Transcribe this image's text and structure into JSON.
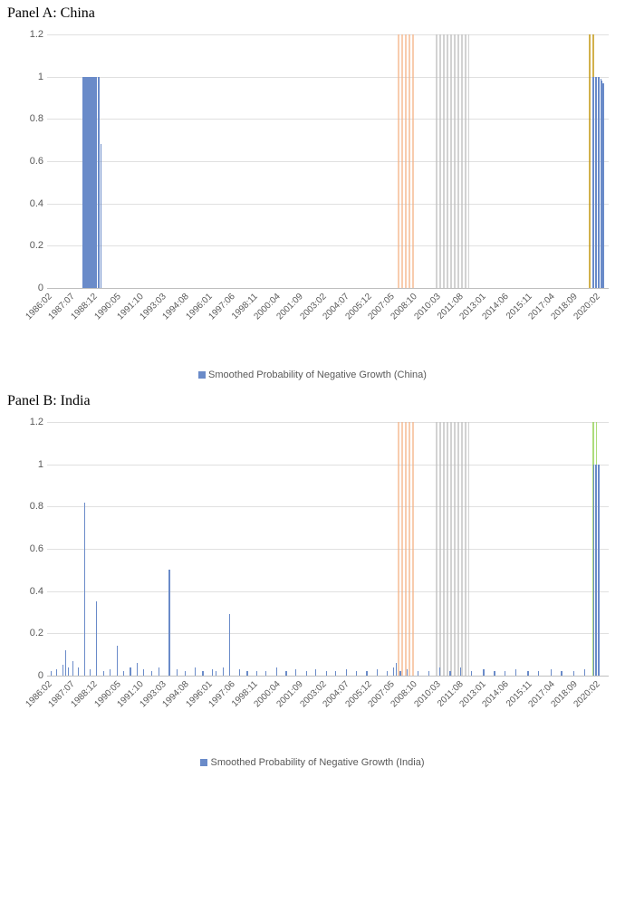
{
  "panelA": {
    "title": "Panel A: China",
    "legend": "Smoothed Probability of Negative Growth (China)",
    "type": "bar",
    "ylim": [
      0,
      1.2
    ],
    "ytick_step": 0.2,
    "x_start": {
      "y": 1986,
      "m": 2
    },
    "x_end": {
      "y": 2020,
      "m": 12
    },
    "xtick_labels": [
      "1986:02",
      "1987:07",
      "1988:12",
      "1990:05",
      "1991:10",
      "1993:03",
      "1994:08",
      "1996:01",
      "1997:06",
      "1998:11",
      "2000:04",
      "2001:09",
      "2003:02",
      "2004:07",
      "2005:12",
      "2007:05",
      "2008:10",
      "2010:03",
      "2011:08",
      "2013:01",
      "2014:06",
      "2015:11",
      "2017:04",
      "2018:09",
      "2020:02"
    ],
    "xtick_step_months": 17,
    "bar_color": "#6a8bc9",
    "bar_data": [
      {
        "ym": "1988:05",
        "v": 1.0
      },
      {
        "ym": "1988:06",
        "v": 1.0
      },
      {
        "ym": "1988:07",
        "v": 1.0
      },
      {
        "ym": "1988:08",
        "v": 1.0
      },
      {
        "ym": "1988:09",
        "v": 1.0
      },
      {
        "ym": "1988:10",
        "v": 1.0
      },
      {
        "ym": "1988:11",
        "v": 1.0
      },
      {
        "ym": "1988:12",
        "v": 1.0
      },
      {
        "ym": "1989:01",
        "v": 1.0
      },
      {
        "ym": "1989:02",
        "v": 1.0
      },
      {
        "ym": "1989:03",
        "v": 1.0
      },
      {
        "ym": "1989:04",
        "v": 1.0
      },
      {
        "ym": "1989:05",
        "v": 1.0
      },
      {
        "ym": "1989:06",
        "v": 0.68
      },
      {
        "ym": "2019:12",
        "v": 1.0
      },
      {
        "ym": "2020:01",
        "v": 1.0
      },
      {
        "ym": "2020:02",
        "v": 1.0
      },
      {
        "ym": "2020:03",
        "v": 1.0
      },
      {
        "ym": "2020:04",
        "v": 1.0
      },
      {
        "ym": "2020:05",
        "v": 1.0
      },
      {
        "ym": "2020:06",
        "v": 0.99
      },
      {
        "ym": "2020:07",
        "v": 0.98
      },
      {
        "ym": "2020:08",
        "v": 0.97
      }
    ],
    "bands": [
      {
        "from": "2007:11",
        "to": "2008:10",
        "color": "#f4b183",
        "opacity": 0.65
      },
      {
        "from": "2010:03",
        "to": "2012:03",
        "color": "#bfbfbf",
        "opacity": 0.7
      },
      {
        "from": "2019:09",
        "to": "2019:12",
        "color": "#bf9000",
        "opacity": 0.7
      }
    ],
    "title_fontsize": 16,
    "axis_font": "Arial",
    "label_fontsize": 10,
    "background_color": "#ffffff",
    "grid_color": "#e0e0e0"
  },
  "panelB": {
    "title": "Panel B: India",
    "legend": "Smoothed Probability of Negative Growth (India)",
    "type": "bar",
    "ylim": [
      0,
      1.2
    ],
    "ytick_step": 0.2,
    "x_start": {
      "y": 1986,
      "m": 2
    },
    "x_end": {
      "y": 2020,
      "m": 12
    },
    "xtick_labels": [
      "1986:02",
      "1987:07",
      "1988:12",
      "1990:05",
      "1991:10",
      "1993:03",
      "1994:08",
      "1996:01",
      "1997:06",
      "1998:11",
      "2000:04",
      "2001:09",
      "2003:02",
      "2004:07",
      "2005:12",
      "2007:05",
      "2008:10",
      "2010:03",
      "2011:08",
      "2013:01",
      "2014:06",
      "2015:11",
      "2017:04",
      "2018:09",
      "2020:02"
    ],
    "xtick_step_months": 17,
    "bar_color": "#6a8bc9",
    "bar_data": [
      {
        "ym": "1986:05",
        "v": 0.02
      },
      {
        "ym": "1986:09",
        "v": 0.03
      },
      {
        "ym": "1987:02",
        "v": 0.05
      },
      {
        "ym": "1987:04",
        "v": 0.12
      },
      {
        "ym": "1987:06",
        "v": 0.04
      },
      {
        "ym": "1987:09",
        "v": 0.07
      },
      {
        "ym": "1988:01",
        "v": 0.04
      },
      {
        "ym": "1988:06",
        "v": 0.82
      },
      {
        "ym": "1988:10",
        "v": 0.03
      },
      {
        "ym": "1989:03",
        "v": 0.35
      },
      {
        "ym": "1989:08",
        "v": 0.02
      },
      {
        "ym": "1990:01",
        "v": 0.03
      },
      {
        "ym": "1990:06",
        "v": 0.14
      },
      {
        "ym": "1990:11",
        "v": 0.02
      },
      {
        "ym": "1991:04",
        "v": 0.04
      },
      {
        "ym": "1991:09",
        "v": 0.06
      },
      {
        "ym": "1992:02",
        "v": 0.03
      },
      {
        "ym": "1992:08",
        "v": 0.02
      },
      {
        "ym": "1993:01",
        "v": 0.04
      },
      {
        "ym": "1993:09",
        "v": 0.5
      },
      {
        "ym": "1994:03",
        "v": 0.03
      },
      {
        "ym": "1994:09",
        "v": 0.02
      },
      {
        "ym": "1995:04",
        "v": 0.04
      },
      {
        "ym": "1995:10",
        "v": 0.02
      },
      {
        "ym": "1996:05",
        "v": 0.03
      },
      {
        "ym": "1996:08",
        "v": 0.02
      },
      {
        "ym": "1997:01",
        "v": 0.04
      },
      {
        "ym": "1997:06",
        "v": 0.29
      },
      {
        "ym": "1998:01",
        "v": 0.03
      },
      {
        "ym": "1998:07",
        "v": 0.02
      },
      {
        "ym": "1999:02",
        "v": 0.02
      },
      {
        "ym": "1999:09",
        "v": 0.02
      },
      {
        "ym": "2000:05",
        "v": 0.04
      },
      {
        "ym": "2000:12",
        "v": 0.02
      },
      {
        "ym": "2001:07",
        "v": 0.03
      },
      {
        "ym": "2002:03",
        "v": 0.02
      },
      {
        "ym": "2002:10",
        "v": 0.03
      },
      {
        "ym": "2003:06",
        "v": 0.02
      },
      {
        "ym": "2004:01",
        "v": 0.02
      },
      {
        "ym": "2004:09",
        "v": 0.03
      },
      {
        "ym": "2005:04",
        "v": 0.02
      },
      {
        "ym": "2005:12",
        "v": 0.02
      },
      {
        "ym": "2006:08",
        "v": 0.03
      },
      {
        "ym": "2007:03",
        "v": 0.02
      },
      {
        "ym": "2007:08",
        "v": 0.04
      },
      {
        "ym": "2007:10",
        "v": 0.06
      },
      {
        "ym": "2008:01",
        "v": 0.02
      },
      {
        "ym": "2008:06",
        "v": 0.03
      },
      {
        "ym": "2009:02",
        "v": 0.02
      },
      {
        "ym": "2009:10",
        "v": 0.02
      },
      {
        "ym": "2010:06",
        "v": 0.04
      },
      {
        "ym": "2011:02",
        "v": 0.02
      },
      {
        "ym": "2011:10",
        "v": 0.04
      },
      {
        "ym": "2012:06",
        "v": 0.02
      },
      {
        "ym": "2013:03",
        "v": 0.03
      },
      {
        "ym": "2013:11",
        "v": 0.02
      },
      {
        "ym": "2014:07",
        "v": 0.02
      },
      {
        "ym": "2015:03",
        "v": 0.03
      },
      {
        "ym": "2015:12",
        "v": 0.02
      },
      {
        "ym": "2016:08",
        "v": 0.02
      },
      {
        "ym": "2017:05",
        "v": 0.03
      },
      {
        "ym": "2018:01",
        "v": 0.02
      },
      {
        "ym": "2018:10",
        "v": 0.02
      },
      {
        "ym": "2019:06",
        "v": 0.03
      },
      {
        "ym": "2020:01",
        "v": 1.0
      },
      {
        "ym": "2020:02",
        "v": 1.0
      },
      {
        "ym": "2020:03",
        "v": 1.0
      },
      {
        "ym": "2020:04",
        "v": 1.0
      },
      {
        "ym": "2020:05",
        "v": 1.0
      }
    ],
    "bands": [
      {
        "from": "2007:11",
        "to": "2008:10",
        "color": "#f4b183",
        "opacity": 0.65
      },
      {
        "from": "2010:03",
        "to": "2012:03",
        "color": "#bfbfbf",
        "opacity": 0.7
      },
      {
        "from": "2019:12",
        "to": "2020:02",
        "color": "#92d050",
        "opacity": 0.75
      }
    ],
    "title_fontsize": 16,
    "axis_font": "Arial",
    "label_fontsize": 10,
    "background_color": "#ffffff",
    "grid_color": "#e0e0e0"
  }
}
